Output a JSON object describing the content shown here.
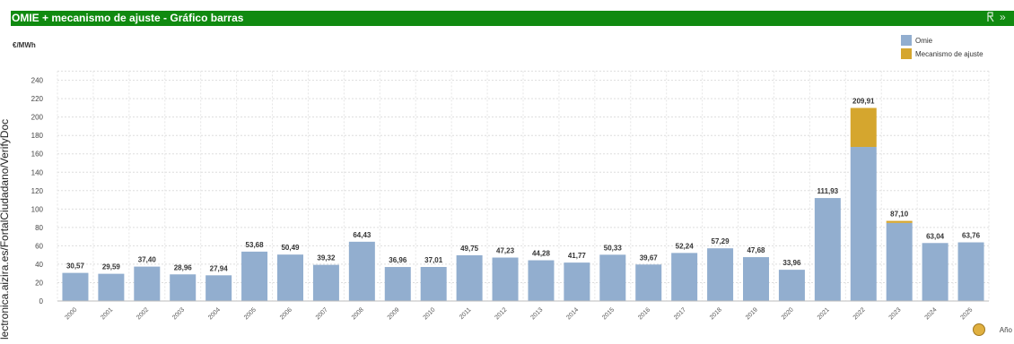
{
  "side_text": "lectronica.aizira.es/FortalCiudadano/VerifyDoc",
  "window": {
    "title": "OMIE + mecanismo de ajuste - Gráfico barras",
    "refresh_icon": "refresh-icon",
    "expand_icon": "expand-icon",
    "expand_glyph": "»"
  },
  "footer": {
    "label": "Año",
    "icon": "settings-icon"
  },
  "colors": {
    "omie": "#92aecf",
    "mecanismo": "#d5a62e",
    "header": "#108a10"
  },
  "chart_data": {
    "type": "bar",
    "stacked": true,
    "ylabel": "€/MWh",
    "xlabel": "",
    "ylim": [
      0,
      250
    ],
    "yticks": [
      0,
      20,
      40,
      60,
      80,
      100,
      120,
      140,
      160,
      180,
      200,
      220,
      240
    ],
    "grid": true,
    "legend": "top-right",
    "categories": [
      "2000",
      "2001",
      "2002",
      "2003",
      "2004",
      "2005",
      "2006",
      "2007",
      "2008",
      "2009",
      "2010",
      "2011",
      "2012",
      "2013",
      "2014",
      "2015",
      "2016",
      "2017",
      "2018",
      "2019",
      "2020",
      "2021",
      "2022",
      "2023",
      "2024",
      "2025"
    ],
    "series": [
      {
        "name": "Omie",
        "values": [
          30.57,
          29.59,
          37.4,
          28.96,
          27.94,
          53.68,
          50.49,
          39.32,
          64.43,
          36.96,
          37.01,
          49.75,
          47.23,
          44.28,
          41.77,
          50.33,
          39.67,
          52.24,
          57.29,
          47.68,
          33.96,
          111.93,
          167.5,
          84.9,
          63.04,
          63.76
        ]
      },
      {
        "name": "Mecanismo de ajuste",
        "values": [
          0,
          0,
          0,
          0,
          0,
          0,
          0,
          0,
          0,
          0,
          0,
          0,
          0,
          0,
          0,
          0,
          0,
          0,
          0,
          0,
          0,
          0,
          42.41,
          2.2,
          0,
          0
        ]
      }
    ],
    "totals": [
      "30,57",
      "29,59",
      "37,40",
      "28,96",
      "27,94",
      "53,68",
      "50,49",
      "39,32",
      "64,43",
      "36,96",
      "37,01",
      "49,75",
      "47,23",
      "44,28",
      "41,77",
      "50,33",
      "39,67",
      "52,24",
      "57,29",
      "47,68",
      "33,96",
      "111,93",
      "209,91",
      "87,10",
      "63,04",
      "63,76"
    ]
  }
}
